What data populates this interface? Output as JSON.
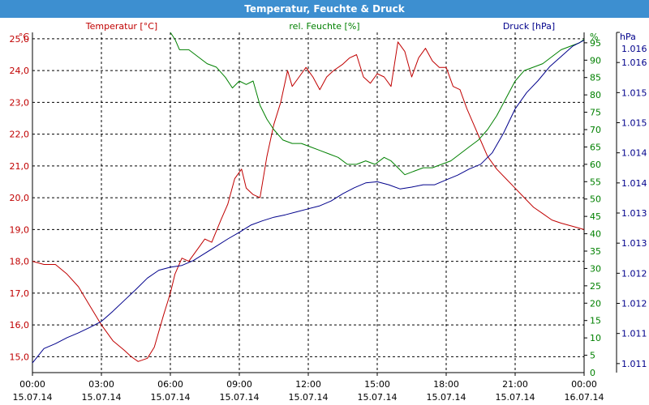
{
  "window": {
    "title": "Temperatur, Feuchte & Druck"
  },
  "chart_data": {
    "type": "line",
    "title": "Temperatur, Feuchte & Druck",
    "grid": true,
    "x": {
      "ticks": [
        {
          "time": "00:00",
          "date": "15.07.14"
        },
        {
          "time": "03:00",
          "date": "15.07.14"
        },
        {
          "time": "06:00",
          "date": "15.07.14"
        },
        {
          "time": "09:00",
          "date": "15.07.14"
        },
        {
          "time": "12:00",
          "date": "15.07.14"
        },
        {
          "time": "15:00",
          "date": "15.07.14"
        },
        {
          "time": "18:00",
          "date": "15.07.14"
        },
        {
          "time": "21:00",
          "date": "15.07.14"
        },
        {
          "time": "00:00",
          "date": "16.07.14"
        }
      ],
      "range_hours": [
        0,
        24
      ]
    },
    "axes": {
      "temperature": {
        "label": "Temperatur [°C]",
        "unit": "°C",
        "range": [
          14.5,
          25.2
        ],
        "ticks": [
          "15,0",
          "16,0",
          "17,0",
          "18,0",
          "19,0",
          "20,0",
          "21,0",
          "22,0",
          "23,0",
          "24,0",
          "25,0"
        ],
        "tick_values": [
          15,
          16,
          17,
          18,
          19,
          20,
          21,
          22,
          23,
          24,
          25
        ]
      },
      "humidity": {
        "label": "rel. Feuchte [%]",
        "unit": "%",
        "range": [
          0,
          98
        ],
        "ticks": [
          "5",
          "10",
          "15",
          "20",
          "25",
          "30",
          "35",
          "40",
          "45",
          "50",
          "55",
          "60",
          "65",
          "70",
          "75",
          "80",
          "85",
          "90",
          "95"
        ],
        "tick_values": [
          5,
          10,
          15,
          20,
          25,
          30,
          35,
          40,
          45,
          50,
          55,
          60,
          65,
          70,
          75,
          80,
          85,
          90,
          95
        ]
      },
      "pressure": {
        "label": "Druck [hPa]",
        "unit": "hPa",
        "range": [
          1010.6,
          1016.25
        ],
        "ticks": [
          "1.011",
          "1.011",
          "1.012",
          "1.012",
          "1.013",
          "1.013",
          "1.014",
          "1.014",
          "1.015",
          "1.015",
          "1.016",
          "1.016"
        ],
        "tick_values": [
          1010.75,
          1011.25,
          1011.75,
          1012.25,
          1012.75,
          1013.25,
          1013.75,
          1014.25,
          1014.75,
          1015.25,
          1015.75,
          1016.25
        ]
      }
    },
    "series": [
      {
        "name": "Temperatur [°C]",
        "axis": "temperature",
        "color": "#c00000",
        "points": [
          [
            0,
            18.0
          ],
          [
            0.5,
            17.9
          ],
          [
            1,
            17.9
          ],
          [
            1.5,
            17.6
          ],
          [
            2,
            17.2
          ],
          [
            2.5,
            16.6
          ],
          [
            3,
            16.0
          ],
          [
            3.5,
            15.5
          ],
          [
            4,
            15.2
          ],
          [
            4.3,
            15.0
          ],
          [
            4.6,
            14.85
          ],
          [
            5,
            14.95
          ],
          [
            5.3,
            15.3
          ],
          [
            5.7,
            16.3
          ],
          [
            6,
            17.0
          ],
          [
            6.2,
            17.6
          ],
          [
            6.5,
            18.1
          ],
          [
            6.8,
            18.0
          ],
          [
            7.2,
            18.4
          ],
          [
            7.5,
            18.7
          ],
          [
            7.8,
            18.6
          ],
          [
            8.2,
            19.3
          ],
          [
            8.5,
            19.8
          ],
          [
            8.8,
            20.6
          ],
          [
            9.1,
            20.9
          ],
          [
            9.3,
            20.3
          ],
          [
            9.6,
            20.1
          ],
          [
            9.9,
            20.0
          ],
          [
            10.2,
            21.3
          ],
          [
            10.5,
            22.3
          ],
          [
            10.8,
            23.0
          ],
          [
            11.1,
            24.0
          ],
          [
            11.3,
            23.5
          ],
          [
            11.6,
            23.8
          ],
          [
            11.9,
            24.1
          ],
          [
            12.2,
            23.8
          ],
          [
            12.5,
            23.4
          ],
          [
            12.8,
            23.8
          ],
          [
            13.1,
            24.0
          ],
          [
            13.5,
            24.2
          ],
          [
            13.8,
            24.4
          ],
          [
            14.1,
            24.5
          ],
          [
            14.4,
            23.8
          ],
          [
            14.7,
            23.6
          ],
          [
            15.0,
            23.9
          ],
          [
            15.3,
            23.8
          ],
          [
            15.6,
            23.5
          ],
          [
            15.9,
            24.9
          ],
          [
            16.2,
            24.6
          ],
          [
            16.5,
            23.8
          ],
          [
            16.8,
            24.4
          ],
          [
            17.1,
            24.7
          ],
          [
            17.4,
            24.3
          ],
          [
            17.7,
            24.1
          ],
          [
            18.0,
            24.1
          ],
          [
            18.3,
            23.5
          ],
          [
            18.6,
            23.4
          ],
          [
            18.9,
            22.8
          ],
          [
            19.2,
            22.3
          ],
          [
            19.5,
            21.8
          ],
          [
            19.8,
            21.3
          ],
          [
            20.2,
            20.9
          ],
          [
            20.6,
            20.6
          ],
          [
            21.0,
            20.3
          ],
          [
            21.4,
            20.0
          ],
          [
            21.8,
            19.7
          ],
          [
            22.2,
            19.5
          ],
          [
            22.6,
            19.3
          ],
          [
            23.0,
            19.2
          ],
          [
            23.5,
            19.1
          ],
          [
            24,
            19.0
          ]
        ]
      },
      {
        "name": "rel. Feuchte [%]",
        "axis": "humidity",
        "color": "#008000",
        "points": [
          [
            6.0,
            98
          ],
          [
            6.2,
            96
          ],
          [
            6.4,
            93
          ],
          [
            6.8,
            93
          ],
          [
            7.2,
            91
          ],
          [
            7.6,
            89
          ],
          [
            8.0,
            88
          ],
          [
            8.4,
            85
          ],
          [
            8.7,
            82
          ],
          [
            9.0,
            84
          ],
          [
            9.3,
            83
          ],
          [
            9.6,
            84
          ],
          [
            9.9,
            77
          ],
          [
            10.2,
            73
          ],
          [
            10.5,
            70
          ],
          [
            10.9,
            67
          ],
          [
            11.3,
            66
          ],
          [
            11.7,
            66
          ],
          [
            12.1,
            65
          ],
          [
            12.5,
            64
          ],
          [
            12.9,
            63
          ],
          [
            13.3,
            62
          ],
          [
            13.7,
            60
          ],
          [
            14.1,
            60
          ],
          [
            14.5,
            61
          ],
          [
            14.9,
            60
          ],
          [
            15.3,
            62
          ],
          [
            15.6,
            61
          ],
          [
            15.9,
            59
          ],
          [
            16.2,
            57
          ],
          [
            16.6,
            58
          ],
          [
            17.0,
            59
          ],
          [
            17.4,
            59
          ],
          [
            17.8,
            60
          ],
          [
            18.2,
            61
          ],
          [
            18.6,
            63
          ],
          [
            19.0,
            65
          ],
          [
            19.4,
            67
          ],
          [
            19.8,
            70
          ],
          [
            20.2,
            74
          ],
          [
            20.6,
            79
          ],
          [
            21.0,
            84
          ],
          [
            21.4,
            87
          ],
          [
            21.8,
            88
          ],
          [
            22.2,
            89
          ],
          [
            22.6,
            91
          ],
          [
            23.0,
            93
          ],
          [
            23.4,
            94
          ],
          [
            23.8,
            95
          ],
          [
            24,
            96
          ]
        ]
      },
      {
        "name": "Druck [hPa]",
        "axis": "pressure",
        "color": "#00008b",
        "points": [
          [
            0,
            1010.76
          ],
          [
            0.5,
            1011.0
          ],
          [
            1,
            1011.08
          ],
          [
            1.5,
            1011.18
          ],
          [
            2,
            1011.26
          ],
          [
            2.5,
            1011.35
          ],
          [
            3,
            1011.45
          ],
          [
            3.5,
            1011.62
          ],
          [
            4,
            1011.8
          ],
          [
            4.5,
            1011.98
          ],
          [
            5,
            1012.17
          ],
          [
            5.5,
            1012.3
          ],
          [
            6,
            1012.35
          ],
          [
            6.5,
            1012.38
          ],
          [
            7,
            1012.46
          ],
          [
            7.5,
            1012.58
          ],
          [
            8,
            1012.7
          ],
          [
            8.5,
            1012.82
          ],
          [
            9,
            1012.93
          ],
          [
            9.5,
            1013.05
          ],
          [
            10,
            1013.12
          ],
          [
            10.5,
            1013.18
          ],
          [
            11,
            1013.22
          ],
          [
            11.5,
            1013.27
          ],
          [
            12,
            1013.32
          ],
          [
            12.5,
            1013.37
          ],
          [
            13,
            1013.45
          ],
          [
            13.5,
            1013.57
          ],
          [
            14,
            1013.67
          ],
          [
            14.5,
            1013.75
          ],
          [
            15,
            1013.77
          ],
          [
            15.5,
            1013.72
          ],
          [
            16,
            1013.65
          ],
          [
            16.5,
            1013.68
          ],
          [
            17,
            1013.72
          ],
          [
            17.5,
            1013.72
          ],
          [
            18,
            1013.8
          ],
          [
            18.5,
            1013.88
          ],
          [
            19,
            1013.98
          ],
          [
            19.5,
            1014.06
          ],
          [
            20,
            1014.25
          ],
          [
            20.5,
            1014.58
          ],
          [
            21,
            1014.98
          ],
          [
            21.5,
            1015.25
          ],
          [
            22,
            1015.45
          ],
          [
            22.5,
            1015.68
          ],
          [
            23,
            1015.85
          ],
          [
            23.5,
            1016.02
          ],
          [
            24,
            1016.12
          ]
        ]
      }
    ]
  }
}
